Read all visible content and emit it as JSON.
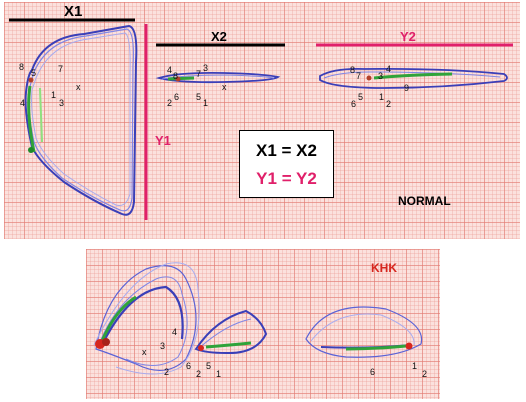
{
  "top_panel": {
    "labels": {
      "x1": "X1",
      "x2": "X2",
      "y2": "Y2",
      "y1": "Y1"
    },
    "equations": {
      "line1": "X1 = X2",
      "line2": "Y1 = Y2"
    },
    "condition": "NORMAL",
    "loop1_points": [
      "8",
      "5",
      "7",
      "4",
      "1",
      "3",
      "x"
    ],
    "loop2_points": [
      "4",
      "8",
      "3",
      "7",
      "x",
      "2",
      "6",
      "5",
      "1"
    ],
    "loop3_points": [
      "8",
      "7",
      "3",
      "4",
      "9",
      "5",
      "6",
      "1",
      "2"
    ]
  },
  "bottom_panel": {
    "condition": "KHK",
    "loop1_points": [
      "4",
      "3",
      "x",
      "2"
    ],
    "loop2_points": [
      "6",
      "5",
      "2",
      "1"
    ],
    "loop3_points": [
      "6",
      "1",
      "2"
    ]
  },
  "colors": {
    "black_bar": "#000000",
    "magenta_bar": "#e0206a",
    "loop_blue": "#3a3fb8",
    "loop_green": "#2fa33a",
    "khk_red": "#d6261e"
  }
}
